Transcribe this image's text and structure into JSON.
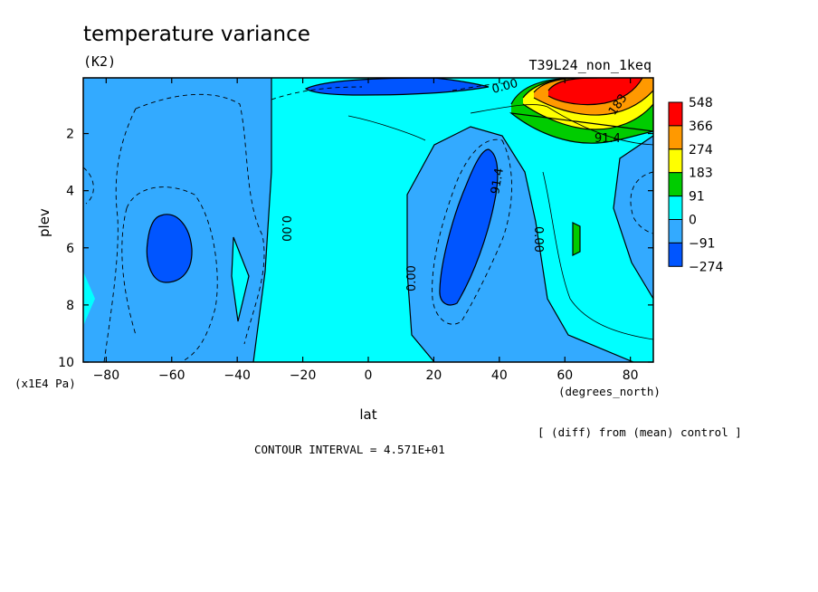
{
  "chart_data": {
    "type": "heatmap",
    "title": "temperature variance",
    "units": "(K2)",
    "run_label": "T39L24_non_1keq",
    "xlabel": "lat",
    "x_units": "(degrees_north)",
    "ylabel": "plev",
    "y_units": "(x1E4 Pa)",
    "xlim": [
      -87,
      87
    ],
    "ylim": [
      0.05,
      10
    ],
    "x_ticks": [
      -80,
      -60,
      -40,
      -20,
      0,
      20,
      40,
      60,
      80
    ],
    "x_tick_labels": [
      "-80",
      "-60",
      "-40",
      "-20",
      "0",
      "20",
      "40",
      "60",
      "80"
    ],
    "y_ticks": [
      2,
      4,
      6,
      8,
      10
    ],
    "y_tick_labels": [
      "2",
      "4",
      "6",
      "8",
      "10"
    ],
    "colorbar": {
      "labels": [
        "548",
        "366",
        "274",
        "183",
        "91",
        "0",
        "-91",
        "-274"
      ],
      "colors": [
        "#ff0000",
        "#ff9900",
        "#ffff00",
        "#00cc00",
        "#00ffff",
        "#33aaff",
        "#0055ff"
      ]
    },
    "contour_labels": [
      "0.00",
      "0.00",
      "0.00",
      "0.00",
      "91.4",
      "91.4",
      "183"
    ],
    "footnote": "[ (diff) from (mean) control ]",
    "contour_interval": "CONTOUR INTERVAL = 4.571E+01"
  }
}
